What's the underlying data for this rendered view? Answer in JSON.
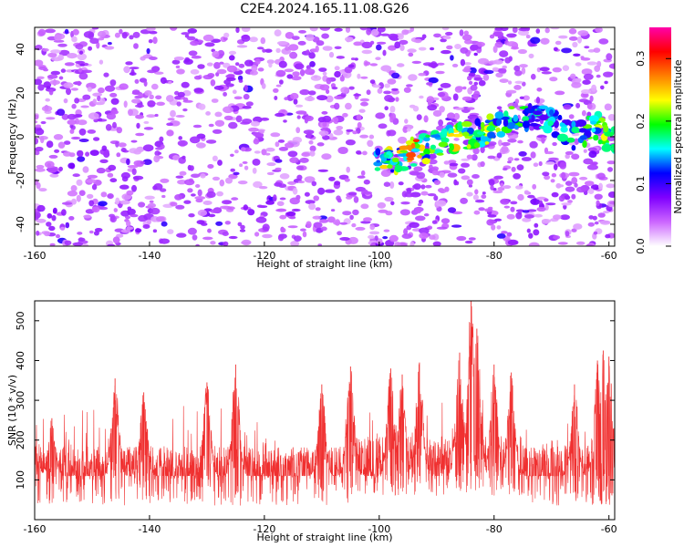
{
  "title": "C2E4.2024.165.11.08.G26",
  "chart_data": [
    {
      "type": "heatmap",
      "xlabel": "Height of straight line (km)",
      "ylabel": "Frequency (Hz)",
      "xlim": [
        -160,
        -59
      ],
      "ylim": [
        -50,
        50
      ],
      "xticks": [
        -160,
        -140,
        -120,
        -100,
        -80,
        -60
      ],
      "yticks": [
        -40,
        -20,
        0,
        20,
        40
      ],
      "colorbar": {
        "label": "Normalized spectral amplitude",
        "range": [
          0.0,
          0.35
        ],
        "ticks": [
          0.0,
          0.1,
          0.2,
          0.3
        ],
        "colormap": [
          "#ffffff",
          "#cc66ff",
          "#7f00ff",
          "#0000ff",
          "#00ffff",
          "#00ff00",
          "#ffff00",
          "#ff7f00",
          "#ff0000",
          "#ff00aa"
        ]
      },
      "ridge": [
        {
          "x": -101,
          "y": -12,
          "amp": 0.26
        },
        {
          "x": -97,
          "y": -11,
          "amp": 0.24
        },
        {
          "x": -94,
          "y": -7,
          "amp": 0.33
        },
        {
          "x": -90,
          "y": -4,
          "amp": 0.2
        },
        {
          "x": -86,
          "y": 0,
          "amp": 0.27
        },
        {
          "x": -82,
          "y": 2,
          "amp": 0.24
        },
        {
          "x": -78,
          "y": 8,
          "amp": 0.22
        },
        {
          "x": -72,
          "y": 9,
          "amp": 0.18
        },
        {
          "x": -66,
          "y": 0,
          "amp": 0.2
        },
        {
          "x": -62,
          "y": 5,
          "amp": 0.23
        },
        {
          "x": -60,
          "y": -2,
          "amp": 0.25
        }
      ]
    },
    {
      "type": "line",
      "xlabel": "Height of straight line (km)",
      "ylabel": "SNR (10 * v/v)",
      "xlim": [
        -160,
        -59
      ],
      "ylim": [
        0,
        550
      ],
      "xticks": [
        -160,
        -140,
        -120,
        -100,
        -80,
        -60
      ],
      "yticks": [
        100,
        200,
        300,
        400,
        500
      ],
      "color": "#f03030",
      "baseline": 110,
      "peaks": [
        {
          "x": -160,
          "y": 200
        },
        {
          "x": -157,
          "y": 255
        },
        {
          "x": -146,
          "y": 355
        },
        {
          "x": -141,
          "y": 320
        },
        {
          "x": -130,
          "y": 345
        },
        {
          "x": -125,
          "y": 390
        },
        {
          "x": -110,
          "y": 340
        },
        {
          "x": -105,
          "y": 385
        },
        {
          "x": -98,
          "y": 380
        },
        {
          "x": -96,
          "y": 365
        },
        {
          "x": -93,
          "y": 395
        },
        {
          "x": -86,
          "y": 420
        },
        {
          "x": -84,
          "y": 550
        },
        {
          "x": -83,
          "y": 480
        },
        {
          "x": -80,
          "y": 390
        },
        {
          "x": -77,
          "y": 370
        },
        {
          "x": -66,
          "y": 340
        },
        {
          "x": -62,
          "y": 400
        },
        {
          "x": -61,
          "y": 425
        },
        {
          "x": -60,
          "y": 410
        }
      ]
    }
  ]
}
